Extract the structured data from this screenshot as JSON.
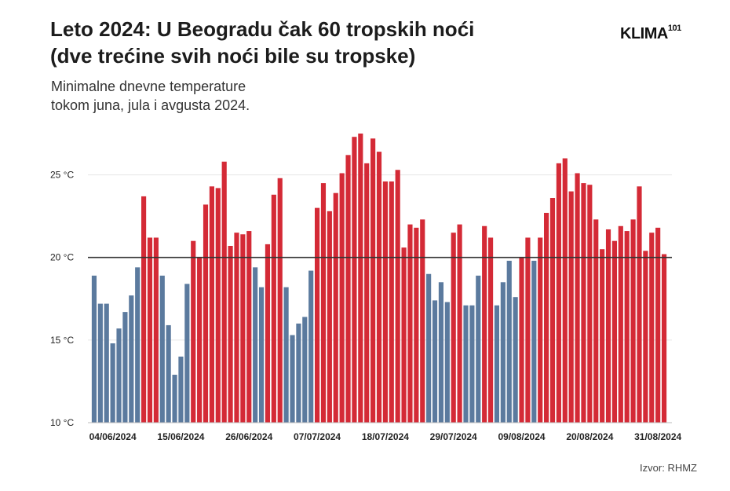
{
  "header": {
    "title_line1": "Leto 2024: U Beogradu čak 60 tropskih noći",
    "title_line2": "(dve trećine svih noći bile su tropske)",
    "subtitle_line1": "Minimalne dnevne temperature",
    "subtitle_line2": "tokom juna, jula i avgusta 2024.",
    "logo_text": "KLIMA",
    "logo_sup": "101"
  },
  "footer": {
    "source": "Izvor: RHMZ"
  },
  "colors": {
    "tropical": "#d42a36",
    "non_tropical": "#5b7a9e",
    "threshold_line": "#333333",
    "grid": "#e6e6e6"
  },
  "chart_data": {
    "type": "bar",
    "title": "Leto 2024: U Beogradu čak 60 tropskih noći (dve trećine svih noći bile su tropske)",
    "subtitle": "Minimalne dnevne temperature tokom juna, jula i avgusta 2024.",
    "xlabel": "",
    "ylabel": "",
    "ylim": [
      10,
      27.5
    ],
    "yticks": [
      10,
      15,
      20,
      25
    ],
    "ytick_labels": [
      "10 °C",
      "15 °C",
      "20 °C",
      "25 °C"
    ],
    "xtick_indices": [
      3,
      14,
      25,
      36,
      47,
      58,
      69,
      80,
      91
    ],
    "xtick_labels": [
      "04/06/2024",
      "15/06/2024",
      "26/06/2024",
      "07/07/2024",
      "18/07/2024",
      "29/07/2024",
      "09/08/2024",
      "20/08/2024",
      "31/08/2024"
    ],
    "threshold": 20,
    "grid": true,
    "series": [
      {
        "values": [
          18.9,
          17.2,
          17.2,
          14.8,
          15.7,
          16.7,
          17.7,
          19.4,
          23.7,
          21.2,
          21.2,
          18.9,
          15.9,
          12.9,
          14.0,
          18.4,
          21.0,
          20.0,
          23.2,
          24.3,
          24.2,
          25.8,
          20.7,
          21.5,
          21.4,
          21.6,
          19.4,
          18.2,
          20.8,
          23.8,
          24.8,
          18.2,
          15.3,
          16.0,
          16.4,
          19.2,
          23.0,
          24.5,
          22.8,
          23.9,
          25.1,
          26.2,
          27.3,
          27.5,
          25.7,
          27.2,
          26.4,
          24.6,
          24.6,
          25.3,
          20.6,
          22.0,
          21.8,
          22.3,
          19.0,
          17.4,
          18.5,
          17.3,
          21.5,
          22.0,
          17.1,
          17.1,
          18.9,
          21.9,
          21.2,
          17.1,
          18.5,
          19.8,
          17.6,
          20.0,
          21.2,
          19.8,
          21.2,
          22.7,
          23.6,
          25.7,
          26.0,
          24.0,
          25.1,
          24.5,
          24.4,
          22.3,
          20.5,
          21.7,
          21.0,
          21.9,
          21.6,
          22.3,
          24.3,
          20.4,
          21.5,
          21.8,
          20.2
        ]
      }
    ]
  }
}
